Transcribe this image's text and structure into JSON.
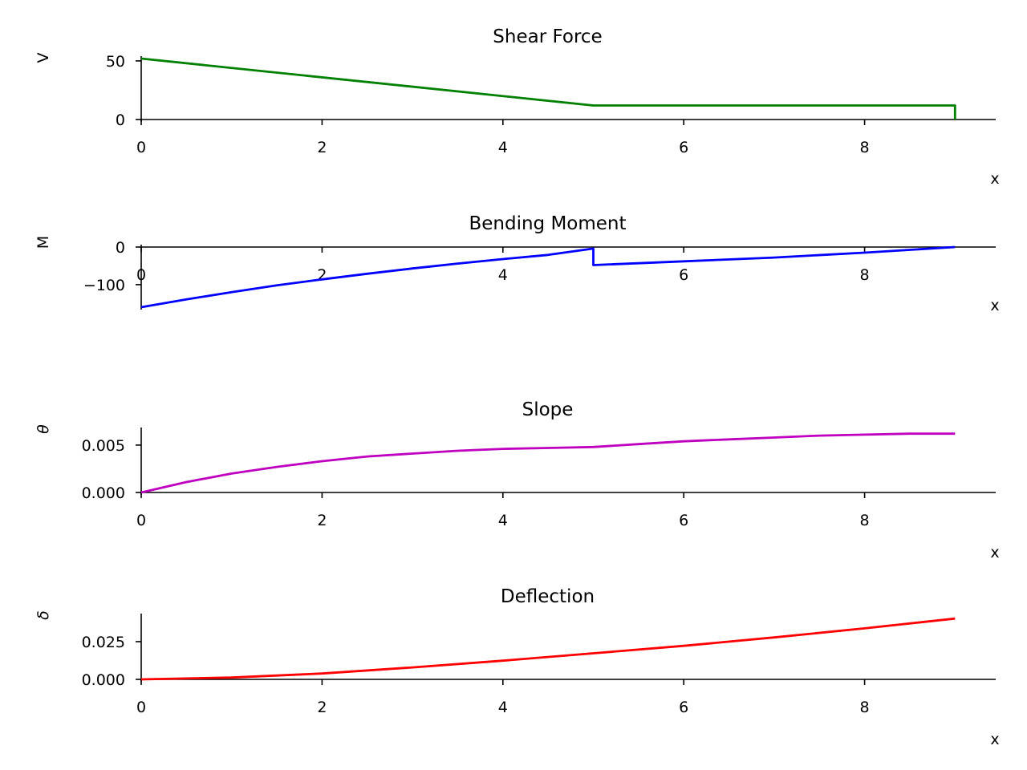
{
  "chart_data": [
    {
      "type": "line",
      "title": "Shear Force",
      "xlabel": "x",
      "ylabel": "V",
      "xlim": [
        0,
        9.45
      ],
      "ylim": [
        0,
        52
      ],
      "xticks": [
        0,
        2,
        4,
        6,
        8
      ],
      "xtick_labels": [
        "0",
        "2",
        "4",
        "6",
        "8"
      ],
      "yticks": [
        0,
        50
      ],
      "ytick_labels": [
        "0",
        "50"
      ],
      "color": "#008000",
      "series": [
        {
          "x": [
            0,
            5,
            5,
            9,
            9
          ],
          "y": [
            52,
            12,
            12,
            12,
            0
          ]
        }
      ]
    },
    {
      "type": "line",
      "title": "Bending Moment",
      "xlabel": "x",
      "ylabel": "M",
      "xlim": [
        0,
        9.45
      ],
      "ylim": [
        -160,
        0
      ],
      "xticks": [
        0,
        2,
        4,
        6,
        8
      ],
      "xtick_labels": [
        "0",
        "2",
        "4",
        "6",
        "8"
      ],
      "yticks": [
        -100,
        0
      ],
      "ytick_labels": [
        "−100",
        "0"
      ],
      "color": "#0000ff",
      "series": [
        {
          "x": [
            0,
            0.5,
            1,
            1.5,
            2,
            2.5,
            3,
            3.5,
            4,
            4.5,
            5,
            5,
            6,
            7,
            8,
            9
          ],
          "y": [
            -160,
            -139,
            -120,
            -102,
            -86,
            -71,
            -57,
            -44,
            -32,
            -21,
            -4,
            -48,
            -38,
            -28,
            -15,
            0
          ]
        }
      ]
    },
    {
      "type": "line",
      "title": "Slope",
      "xlabel": "x",
      "ylabel": "θ",
      "xlim": [
        0,
        9.45
      ],
      "ylim": [
        0,
        0.0066
      ],
      "xticks": [
        0,
        2,
        4,
        6,
        8
      ],
      "xtick_labels": [
        "0",
        "2",
        "4",
        "6",
        "8"
      ],
      "yticks": [
        0,
        0.005
      ],
      "ytick_labels": [
        "0.000",
        "0.005"
      ],
      "color": "#bf00bf",
      "series": [
        {
          "x": [
            0,
            0.5,
            1,
            1.5,
            2,
            2.5,
            3,
            3.5,
            4,
            4.5,
            5,
            5.5,
            6,
            6.5,
            7,
            7.5,
            8,
            8.5,
            9
          ],
          "y": [
            0,
            0.0011,
            0.002,
            0.0027,
            0.0033,
            0.0038,
            0.0041,
            0.0044,
            0.0046,
            0.0047,
            0.0048,
            0.0051,
            0.0054,
            0.0056,
            0.0058,
            0.006,
            0.0061,
            0.0062,
            0.0062
          ]
        }
      ]
    },
    {
      "type": "line",
      "title": "Deflection",
      "xlabel": "x",
      "ylabel": "δ",
      "xlim": [
        0,
        9.45
      ],
      "ylim": [
        0,
        0.042
      ],
      "xticks": [
        0,
        2,
        4,
        6,
        8
      ],
      "xtick_labels": [
        "0",
        "2",
        "4",
        "6",
        "8"
      ],
      "yticks": [
        0,
        0.025
      ],
      "ytick_labels": [
        "0.000",
        "0.025"
      ],
      "color": "#ff0000",
      "series": [
        {
          "x": [
            0,
            1,
            2,
            3,
            4,
            5,
            6,
            7,
            8,
            9
          ],
          "y": [
            0,
            0.0012,
            0.0039,
            0.0079,
            0.0124,
            0.0173,
            0.0222,
            0.0278,
            0.0338,
            0.0403
          ]
        }
      ]
    }
  ]
}
